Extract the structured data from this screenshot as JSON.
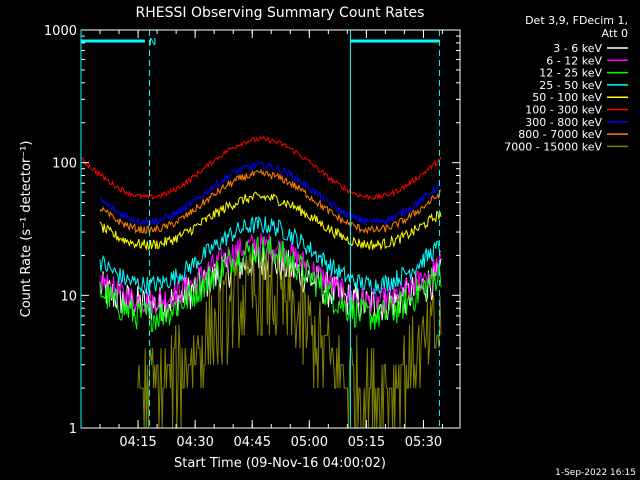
{
  "chart_data": {
    "type": "line",
    "title": "RHESSI Observing Summary Count Rates",
    "xlabel": "Start Time (09-Nov-16 04:00:02)",
    "ylabel": "Count Rate (s⁻¹ detector⁻¹)",
    "footer": "1-Sep-2022 16:15",
    "y_scale": "log",
    "ylim": [
      1,
      1000
    ],
    "xlim": [
      4.0,
      5.66
    ],
    "x_ticks": [
      {
        "label": "04:15",
        "value": 4.25
      },
      {
        "label": "04:30",
        "value": 4.5
      },
      {
        "label": "04:45",
        "value": 4.75
      },
      {
        "label": "05:00",
        "value": 5.0
      },
      {
        "label": "05:15",
        "value": 5.25
      },
      {
        "label": "05:30",
        "value": 5.5
      }
    ],
    "y_ticks": [
      {
        "label": "1",
        "value": 1
      },
      {
        "label": "10",
        "value": 10
      },
      {
        "label": "100",
        "value": 100
      },
      {
        "label": "1000",
        "value": 1000
      }
    ],
    "legend_header": [
      "Det 3,9, FDecim 1,",
      "Att 0"
    ],
    "legend_position": "right",
    "overlays": {
      "color": "#00ffff",
      "solid_lines_x": [
        4.0,
        5.18
      ],
      "dashed_lines_x": [
        4.3,
        5.57
      ],
      "bars": [
        {
          "x": [
            4.0,
            4.28
          ],
          "label": "N"
        },
        {
          "x": [
            5.18,
            5.57
          ],
          "label": ""
        }
      ]
    },
    "series": [
      {
        "name": "3 - 6 keV",
        "color": "#ffffff",
        "low": 8.5,
        "high": 18,
        "noise": 0.14,
        "start": 0.05
      },
      {
        "name": "6 - 12 keV",
        "color": "#ff00ff",
        "low": 9.0,
        "high": 24,
        "noise": 0.1,
        "start": 0.05
      },
      {
        "name": "12 - 25 keV",
        "color": "#00ff00",
        "low": 7.0,
        "high": 22,
        "noise": 0.12,
        "start": 0.05
      },
      {
        "name": "25 - 50 keV",
        "color": "#00ffff",
        "low": 12,
        "high": 34,
        "noise": 0.07,
        "start": 0.05
      },
      {
        "name": "50 - 100 keV",
        "color": "#ffff00",
        "low": 24,
        "high": 55,
        "noise": 0.04,
        "start": 0.05
      },
      {
        "name": "100 - 300 keV",
        "color": "#ff0000",
        "low": 55,
        "high": 150,
        "noise": 0.02,
        "start": 0.0
      },
      {
        "name": "300 - 800 keV",
        "color": "#0000ff",
        "low": 36,
        "high": 95,
        "noise": 0.03,
        "start": 0.05
      },
      {
        "name": "800 - 7000 keV",
        "color": "#ff8000",
        "low": 31,
        "high": 82,
        "noise": 0.03,
        "start": 0.05
      },
      {
        "name": "7000 - 15000 keV",
        "color": "#808000",
        "low": 2.0,
        "high": 10,
        "noise": 0.35,
        "start": 0.15
      }
    ]
  }
}
